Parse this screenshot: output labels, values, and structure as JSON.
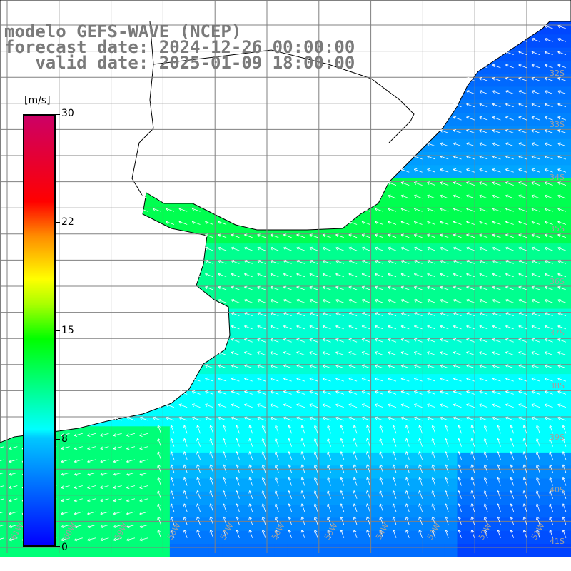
{
  "title": {
    "line1": "modelo GEFS-WAVE (NCEP)",
    "line2": "forecast date: 2024-12-26 00:00:00",
    "line3": "   valid date: 2025-01-09 18:00:00"
  },
  "colorbar": {
    "unit": "[m/s]",
    "min": 0,
    "max": 30,
    "ticks": [
      "30",
      "22",
      "15",
      "8",
      "0"
    ],
    "tick_values": [
      30,
      22,
      15,
      8,
      0
    ],
    "colors": {
      "0": "#0000ff",
      "8": "#00ffff",
      "15": "#a8ff00",
      "22": "#ff6a00",
      "30": "#cc0066"
    }
  },
  "axes": {
    "lon_labels": [
      "61W",
      "60W",
      "59W",
      "58W",
      "57W",
      "56W",
      "55W",
      "54W",
      "53W",
      "52W",
      "51W"
    ],
    "lat_labels": [
      "32S",
      "33S",
      "34S",
      "35S",
      "36S",
      "37S",
      "38S",
      "39S",
      "40S",
      "41S"
    ]
  },
  "map": {
    "land_color": "#ffffff",
    "grid_color": "#808080",
    "coast_color": "#000000",
    "arrow_color": "#ffffff"
  }
}
